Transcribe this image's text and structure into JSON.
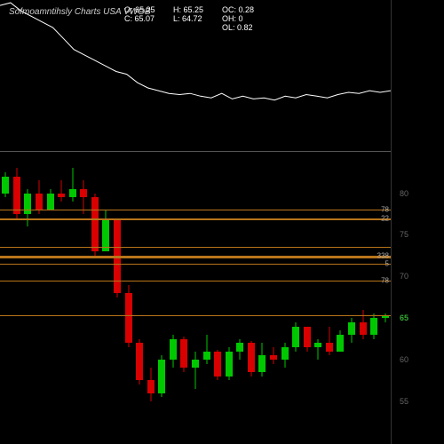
{
  "title": "Sofmoamntihsly Charts USA VWOB",
  "ohlc": {
    "O": "65.25",
    "H": "65.25",
    "OC": "0.28",
    "C": "65.07",
    "L": "64.72",
    "OH": "0",
    "OL": "0.82"
  },
  "colors": {
    "bg": "#000000",
    "up_body": "#00c800",
    "down_body": "#d80000",
    "wick": "#ffffff",
    "line": "#ffffff",
    "fib_line": "#b8741a",
    "grid_tick": "#666666",
    "current_tick": "#33aa33"
  },
  "upper_line": {
    "ylim": [
      62,
      83
    ],
    "points": [
      82,
      82.5,
      81,
      80,
      79,
      78,
      76,
      74,
      73,
      72,
      71,
      70,
      69.5,
      68,
      67,
      66.5,
      66,
      65.8,
      66,
      65.5,
      65.2,
      66,
      65,
      65.5,
      65,
      65.2,
      64.8,
      65.5,
      65.2,
      65.8,
      65.5,
      65.2,
      65.8,
      66.2,
      66,
      66.5,
      66.2,
      66.5
    ]
  },
  "main_chart": {
    "ylim": [
      52,
      84
    ],
    "yticks": [
      55,
      60,
      65,
      70,
      75,
      80
    ],
    "current": 65,
    "fib_lines": [
      {
        "y": 78,
        "label": "78",
        "thick": 1
      },
      {
        "y": 77,
        "label": "22",
        "thick": 2
      },
      {
        "y": 73.5,
        "label": "",
        "thick": 1
      },
      {
        "y": 72.5,
        "label": "338",
        "thick": 3
      },
      {
        "y": 71.5,
        "label": "5",
        "thick": 1
      },
      {
        "y": 69.5,
        "label": "78",
        "thick": 1
      },
      {
        "y": 65.3,
        "label": "",
        "thick": 1
      }
    ],
    "candles": [
      {
        "o": 80,
        "h": 82.5,
        "l": 79.5,
        "c": 82
      },
      {
        "o": 82,
        "h": 83,
        "l": 77,
        "c": 77.5
      },
      {
        "o": 77.5,
        "h": 80.5,
        "l": 76,
        "c": 80
      },
      {
        "o": 80,
        "h": 81.5,
        "l": 77.5,
        "c": 78
      },
      {
        "o": 78,
        "h": 80.5,
        "l": 78,
        "c": 80
      },
      {
        "o": 80,
        "h": 81.5,
        "l": 79,
        "c": 79.5
      },
      {
        "o": 79.5,
        "h": 83,
        "l": 79,
        "c": 80.5
      },
      {
        "o": 80.5,
        "h": 81.5,
        "l": 77.5,
        "c": 79.5
      },
      {
        "o": 79.5,
        "h": 80,
        "l": 72.5,
        "c": 73
      },
      {
        "o": 73,
        "h": 78,
        "l": 73,
        "c": 77
      },
      {
        "o": 77,
        "h": 77,
        "l": 67.5,
        "c": 68
      },
      {
        "o": 68,
        "h": 69,
        "l": 61.5,
        "c": 62
      },
      {
        "o": 62,
        "h": 62.5,
        "l": 57,
        "c": 57.5
      },
      {
        "o": 57.5,
        "h": 59,
        "l": 55,
        "c": 56
      },
      {
        "o": 56,
        "h": 60.5,
        "l": 55.5,
        "c": 60
      },
      {
        "o": 60,
        "h": 63,
        "l": 59,
        "c": 62.5
      },
      {
        "o": 62.5,
        "h": 62.8,
        "l": 58.5,
        "c": 59
      },
      {
        "o": 59,
        "h": 61,
        "l": 56.5,
        "c": 60
      },
      {
        "o": 60,
        "h": 63,
        "l": 59.5,
        "c": 61
      },
      {
        "o": 61,
        "h": 61.2,
        "l": 57.5,
        "c": 58
      },
      {
        "o": 58,
        "h": 61.5,
        "l": 57.5,
        "c": 61
      },
      {
        "o": 61,
        "h": 62.5,
        "l": 60,
        "c": 62
      },
      {
        "o": 62,
        "h": 62.2,
        "l": 58,
        "c": 58.5
      },
      {
        "o": 58.5,
        "h": 62,
        "l": 58,
        "c": 60.5
      },
      {
        "o": 60.5,
        "h": 61.5,
        "l": 59.5,
        "c": 60
      },
      {
        "o": 60,
        "h": 62,
        "l": 59,
        "c": 61.5
      },
      {
        "o": 61.5,
        "h": 64.5,
        "l": 61,
        "c": 64
      },
      {
        "o": 64,
        "h": 64,
        "l": 61,
        "c": 61.5
      },
      {
        "o": 61.5,
        "h": 62.5,
        "l": 60,
        "c": 62
      },
      {
        "o": 62,
        "h": 64,
        "l": 60.5,
        "c": 61
      },
      {
        "o": 61,
        "h": 63.5,
        "l": 61,
        "c": 63
      },
      {
        "o": 63,
        "h": 65,
        "l": 62,
        "c": 64.5
      },
      {
        "o": 64.5,
        "h": 66,
        "l": 62.5,
        "c": 63
      },
      {
        "o": 63,
        "h": 65.5,
        "l": 62.5,
        "c": 65
      },
      {
        "o": 65,
        "h": 65.5,
        "l": 64.5,
        "c": 65.2
      }
    ]
  }
}
